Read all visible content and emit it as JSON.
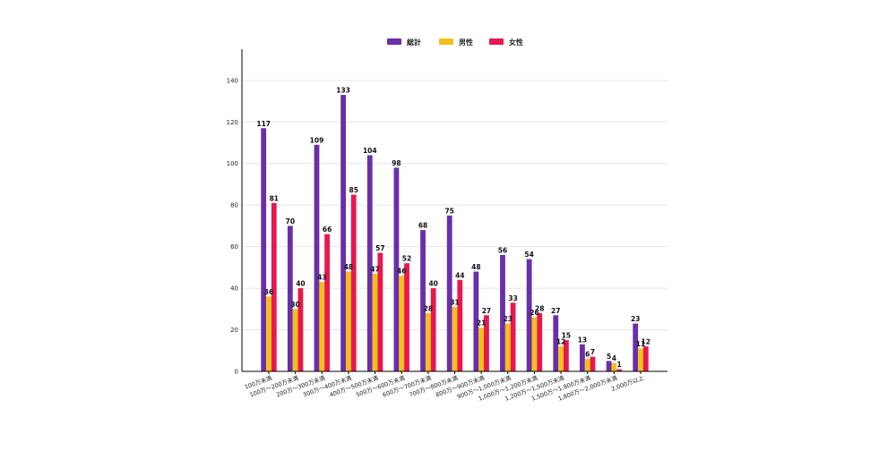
{
  "chart_data": {
    "type": "bar",
    "categories": [
      "100万未満",
      "100万～200万未満",
      "200万～300万未満",
      "300万～400万未満",
      "400万～500万未満",
      "500万～600万未満",
      "600万～700万未満",
      "700万～800万未満",
      "800万～900万未満",
      "900万～1,000万未満",
      "1,000万～1,200万未満",
      "1,200万～1,500万未満",
      "1,500万～1,800万未満",
      "1,800万～2,000万未満",
      "2,000万以上"
    ],
    "series": [
      {
        "name": "総計",
        "color": "#6a2fa8",
        "values": [
          117,
          70,
          109,
          133,
          104,
          98,
          68,
          75,
          48,
          56,
          54,
          27,
          13,
          5,
          23
        ]
      },
      {
        "name": "男性",
        "color": "#f5bf1a",
        "values": [
          36,
          30,
          43,
          48,
          47,
          46,
          28,
          31,
          21,
          23,
          26,
          12,
          6,
          4,
          11
        ]
      },
      {
        "name": "女性",
        "color": "#e8174f",
        "values": [
          81,
          40,
          66,
          85,
          57,
          52,
          40,
          44,
          27,
          33,
          28,
          15,
          7,
          1,
          12
        ]
      }
    ],
    "yticks": [
      0,
      20,
      40,
      60,
      80,
      100,
      120,
      140
    ],
    "ylim": [
      0,
      155
    ],
    "title": "",
    "xlabel": "",
    "ylabel": "",
    "grid": "horizontal",
    "legend_position": "top-center"
  }
}
